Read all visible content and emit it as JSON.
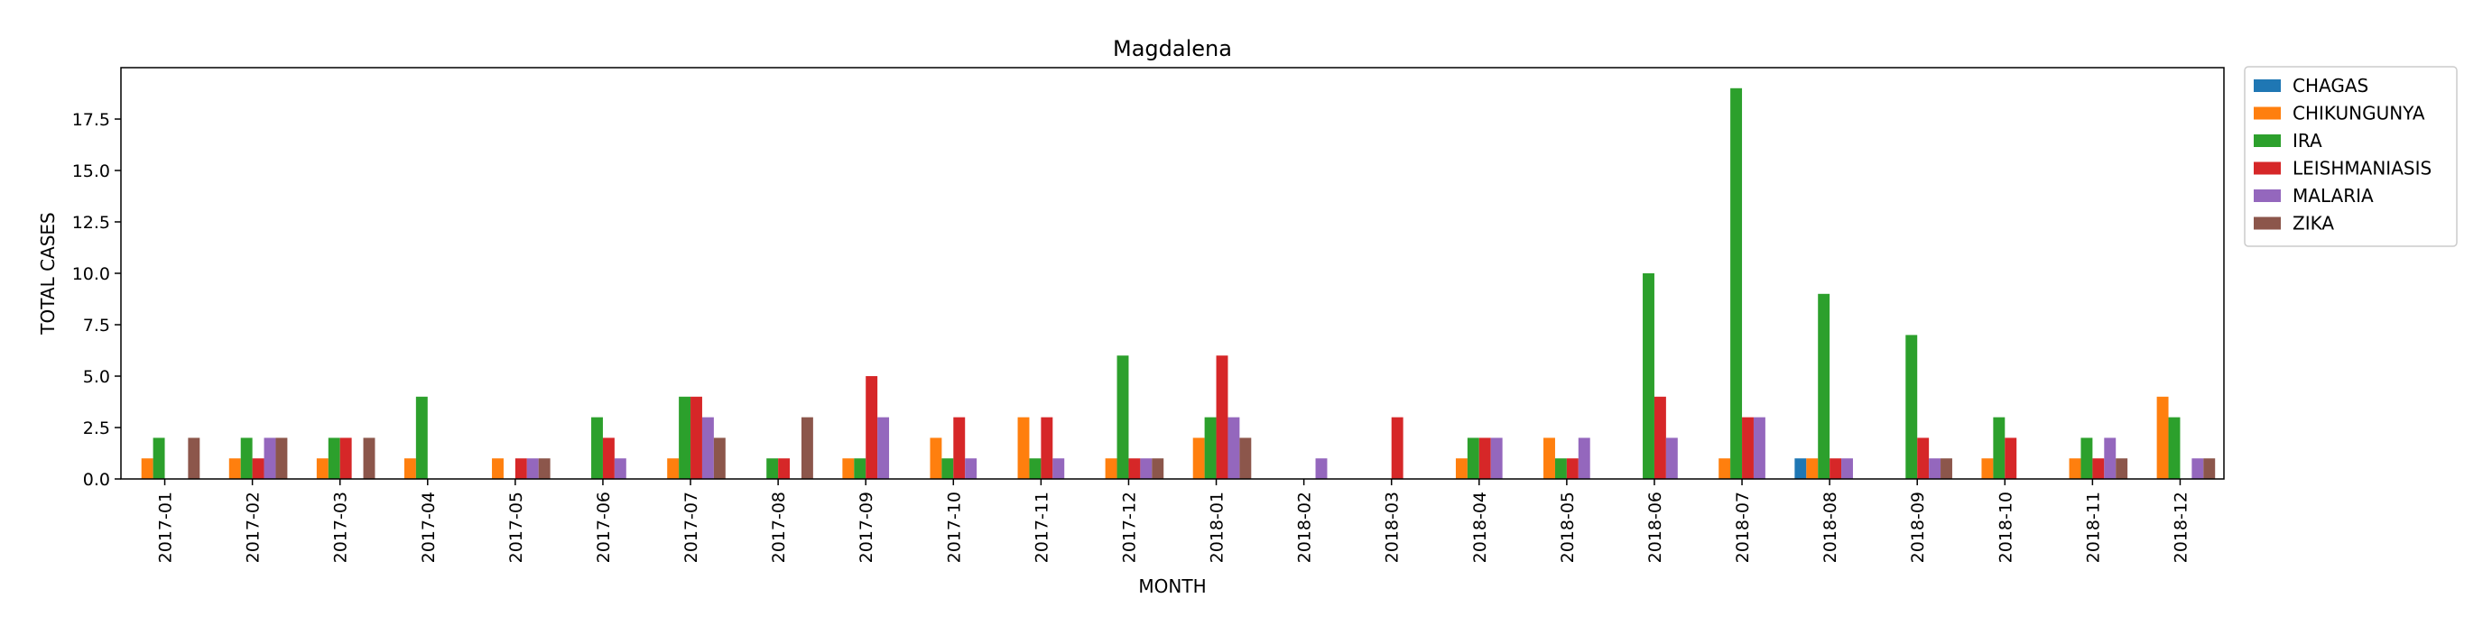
{
  "chart_data": {
    "type": "bar",
    "title": "Magdalena",
    "xlabel": "MONTH",
    "ylabel": "TOTAL CASES",
    "ylim": [
      0,
      20
    ],
    "yticks": [
      "0.0",
      "2.5",
      "5.0",
      "7.5",
      "10.0",
      "12.5",
      "15.0",
      "17.5"
    ],
    "grid": false,
    "legend_position": "outside-top-right",
    "categories": [
      "2017-01",
      "2017-02",
      "2017-03",
      "2017-04",
      "2017-05",
      "2017-06",
      "2017-07",
      "2017-08",
      "2017-09",
      "2017-10",
      "2017-11",
      "2017-12",
      "2018-01",
      "2018-02",
      "2018-03",
      "2018-04",
      "2018-05",
      "2018-06",
      "2018-07",
      "2018-08",
      "2018-09",
      "2018-10",
      "2018-11",
      "2018-12"
    ],
    "series": [
      {
        "name": "CHAGAS",
        "color": "#1f77b4",
        "values": [
          0,
          0,
          0,
          0,
          0,
          0,
          0,
          0,
          0,
          0,
          0,
          0,
          0,
          0,
          0,
          0,
          0,
          0,
          0,
          1,
          0,
          0,
          0,
          0
        ]
      },
      {
        "name": "CHIKUNGUNYA",
        "color": "#ff7f0e",
        "values": [
          1,
          1,
          1,
          1,
          1,
          0,
          1,
          0,
          1,
          2,
          3,
          1,
          2,
          0,
          0,
          1,
          2,
          0,
          1,
          1,
          0,
          1,
          1,
          4
        ]
      },
      {
        "name": "IRA",
        "color": "#2ca02c",
        "values": [
          2,
          2,
          2,
          4,
          0,
          3,
          4,
          1,
          1,
          1,
          1,
          6,
          3,
          0,
          0,
          2,
          1,
          10,
          19,
          9,
          7,
          3,
          2,
          3
        ]
      },
      {
        "name": "LEISHMANIASIS",
        "color": "#d62728",
        "values": [
          0,
          1,
          2,
          0,
          1,
          2,
          4,
          1,
          5,
          3,
          3,
          1,
          6,
          0,
          3,
          2,
          1,
          4,
          3,
          1,
          2,
          2,
          1,
          0
        ]
      },
      {
        "name": "MALARIA",
        "color": "#9467bd",
        "values": [
          0,
          2,
          0,
          0,
          1,
          1,
          3,
          0,
          3,
          1,
          1,
          1,
          3,
          1,
          0,
          2,
          2,
          2,
          3,
          1,
          1,
          0,
          2,
          1
        ]
      },
      {
        "name": "ZIKA",
        "color": "#8c564b",
        "values": [
          2,
          2,
          2,
          0,
          1,
          0,
          2,
          3,
          0,
          0,
          0,
          1,
          2,
          0,
          0,
          0,
          0,
          0,
          0,
          0,
          1,
          0,
          1,
          1
        ]
      }
    ]
  }
}
